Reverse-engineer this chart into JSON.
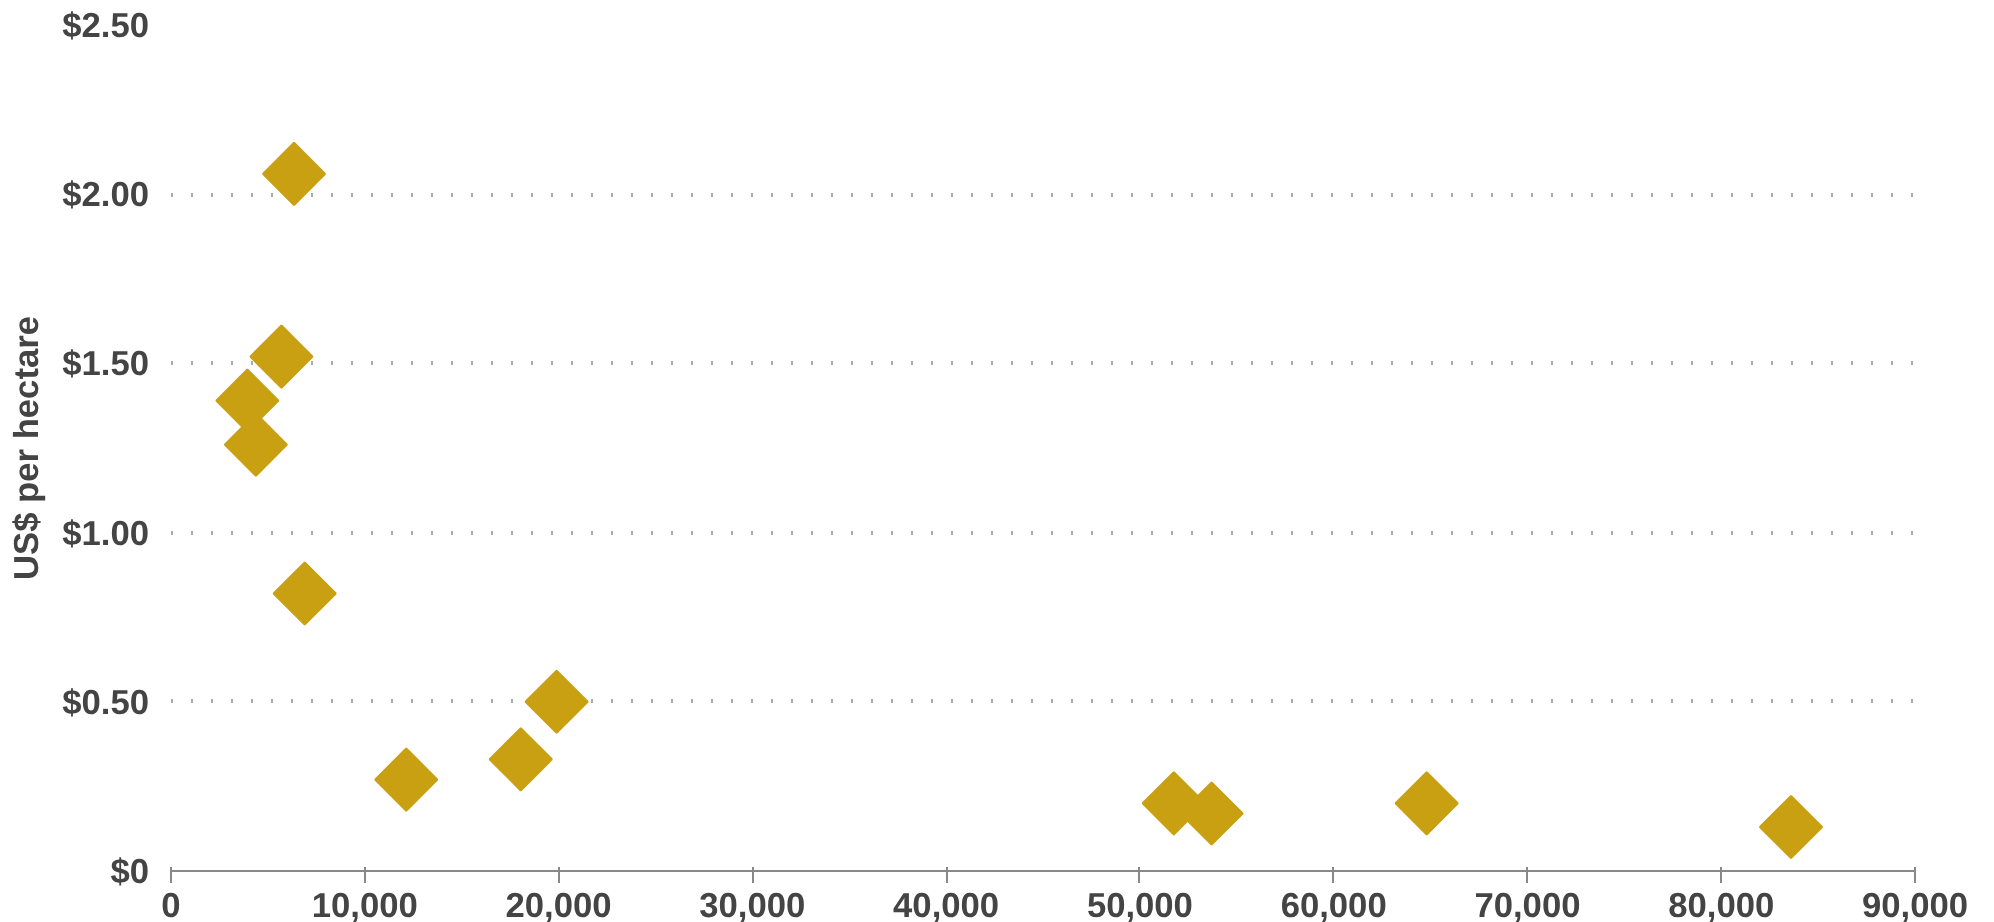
{
  "chart_data": {
    "type": "scatter",
    "ylabel": "US$ per hectare",
    "x": [
      6350,
      5700,
      3940,
      4380,
      6900,
      12140,
      18050,
      19900,
      51750,
      53700,
      64800,
      83600
    ],
    "series": [
      {
        "color": "#c9a012",
        "values": [
          2.06,
          1.52,
          1.39,
          1.26,
          0.82,
          0.27,
          0.33,
          0.5,
          0.2,
          0.17,
          0.2,
          0.13
        ]
      }
    ],
    "xlim": [
      0,
      90000
    ],
    "xticks": [
      0,
      {
        "value": 10000,
        "label": "10,000"
      },
      {
        "value": 20000,
        "label": "20,000"
      },
      {
        "value": 30000,
        "label": "30,000"
      },
      {
        "value": 40000,
        "label": "40,000"
      },
      {
        "value": 50000,
        "label": "50,000"
      },
      {
        "value": 60000,
        "label": "60,000"
      },
      {
        "value": 70000,
        "label": "70,000"
      },
      {
        "value": 80000,
        "label": "80,000"
      },
      {
        "value": 90000,
        "label": "90,000"
      }
    ],
    "ylim": [
      0,
      2.5
    ],
    "yticks": [
      {
        "value": 0,
        "label": "$0"
      },
      {
        "value": 0.5,
        "label": "$0.50"
      },
      {
        "value": 1,
        "label": "$1.00"
      },
      {
        "value": 1.5,
        "label": "$1.50"
      },
      {
        "value": 2,
        "label": "$2.00"
      },
      {
        "value": 2.5,
        "label": "$2.50"
      }
    ],
    "grid": "y",
    "marker": "diamond"
  }
}
